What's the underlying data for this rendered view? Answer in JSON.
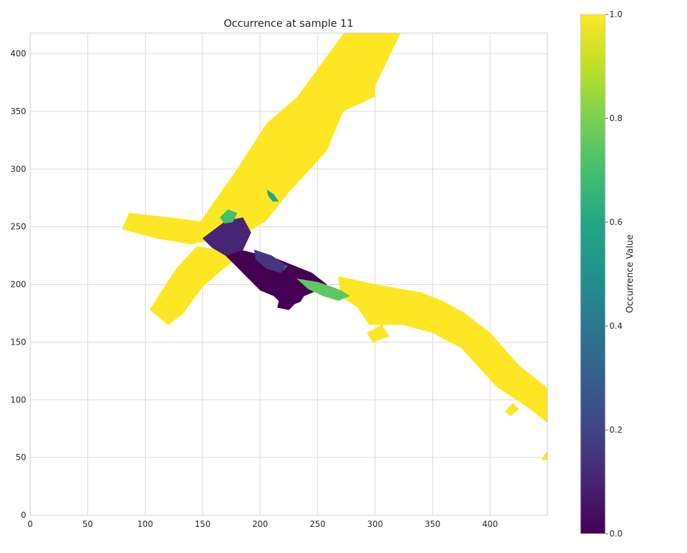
{
  "chart_data": {
    "type": "heatmap",
    "title": "Occurrence at sample 11",
    "xlabel": "",
    "ylabel": "",
    "xlim": [
      0,
      450
    ],
    "ylim": [
      0,
      418
    ],
    "xticks": [
      0,
      50,
      100,
      150,
      200,
      250,
      300,
      350,
      400
    ],
    "yticks": [
      0,
      50,
      100,
      150,
      200,
      250,
      300,
      350,
      400
    ],
    "grid": true,
    "colormap": "viridis",
    "colorbar": {
      "label": "Occurrence Value",
      "range": [
        0.0,
        1.0
      ],
      "ticks": [
        "0.0",
        "0.2",
        "0.4",
        "0.6",
        "0.8",
        "1.0"
      ]
    },
    "regions": [
      {
        "value": 1.0,
        "polygon": [
          [
            147,
            253
          ],
          [
            180,
            300
          ],
          [
            206,
            340
          ],
          [
            232,
            362
          ],
          [
            273,
            418
          ],
          [
            322,
            418
          ],
          [
            300,
            372
          ],
          [
            300,
            363
          ],
          [
            272,
            350
          ],
          [
            258,
            316
          ],
          [
            225,
            280
          ],
          [
            205,
            255
          ],
          [
            180,
            240
          ],
          [
            160,
            235
          ]
        ]
      },
      {
        "value": 1.0,
        "polygon": [
          [
            80,
            248
          ],
          [
            86,
            262
          ],
          [
            130,
            257
          ],
          [
            165,
            252
          ],
          [
            175,
            248
          ],
          [
            174,
            240
          ],
          [
            155,
            238
          ],
          [
            140,
            235
          ],
          [
            110,
            240
          ]
        ]
      },
      {
        "value": 1.0,
        "polygon": [
          [
            104,
            178
          ],
          [
            120,
            165
          ],
          [
            133,
            175
          ],
          [
            150,
            198
          ],
          [
            166,
            212
          ],
          [
            182,
            224
          ],
          [
            165,
            230
          ],
          [
            145,
            233
          ],
          [
            128,
            215
          ],
          [
            118,
            200
          ]
        ]
      },
      {
        "value": 1.0,
        "polygon": [
          [
            268,
            207
          ],
          [
            300,
            200
          ],
          [
            340,
            193
          ],
          [
            360,
            185
          ],
          [
            378,
            175
          ],
          [
            400,
            158
          ],
          [
            425,
            130
          ],
          [
            450,
            110
          ],
          [
            450,
            80
          ],
          [
            435,
            92
          ],
          [
            405,
            112
          ],
          [
            375,
            145
          ],
          [
            350,
            158
          ],
          [
            325,
            165
          ],
          [
            305,
            165
          ],
          [
            295,
            165
          ],
          [
            285,
            180
          ],
          [
            270,
            190
          ]
        ]
      },
      {
        "value": 1.0,
        "polygon": [
          [
            293,
            158
          ],
          [
            306,
            165
          ],
          [
            312,
            155
          ],
          [
            298,
            150
          ]
        ]
      },
      {
        "value": 1.0,
        "polygon": [
          [
            413,
            90
          ],
          [
            420,
            97
          ],
          [
            425,
            92
          ],
          [
            418,
            86
          ]
        ]
      },
      {
        "value": 1.0,
        "polygon": [
          [
            445,
            48
          ],
          [
            450,
            48
          ],
          [
            450,
            55
          ],
          [
            447,
            52
          ]
        ]
      },
      {
        "value": 0.0,
        "polygon": [
          [
            175,
            232
          ],
          [
            215,
            222
          ],
          [
            245,
            210
          ],
          [
            258,
            200
          ],
          [
            250,
            195
          ],
          [
            238,
            190
          ],
          [
            235,
            185
          ],
          [
            222,
            180
          ],
          [
            212,
            190
          ],
          [
            200,
            195
          ],
          [
            190,
            205
          ],
          [
            180,
            215
          ],
          [
            170,
            225
          ]
        ]
      },
      {
        "value": 0.0,
        "polygon": [
          [
            215,
            180
          ],
          [
            225,
            178
          ],
          [
            232,
            185
          ],
          [
            225,
            190
          ],
          [
            217,
            188
          ]
        ]
      },
      {
        "value": 0.1,
        "polygon": [
          [
            150,
            240
          ],
          [
            170,
            255
          ],
          [
            185,
            258
          ],
          [
            192,
            245
          ],
          [
            185,
            230
          ],
          [
            170,
            225
          ],
          [
            158,
            232
          ]
        ]
      },
      {
        "value": 0.35,
        "polygon": [
          [
            210,
            214
          ],
          [
            220,
            212
          ],
          [
            224,
            216
          ],
          [
            218,
            219
          ],
          [
            211,
            218
          ]
        ]
      },
      {
        "value": 0.75,
        "polygon": [
          [
            232,
            205
          ],
          [
            250,
            202
          ],
          [
            262,
            198
          ],
          [
            270,
            195
          ],
          [
            278,
            190
          ],
          [
            268,
            186
          ],
          [
            255,
            190
          ],
          [
            242,
            196
          ]
        ]
      },
      {
        "value": 0.7,
        "polygon": [
          [
            165,
            258
          ],
          [
            172,
            265
          ],
          [
            180,
            262
          ],
          [
            176,
            254
          ],
          [
            169,
            253
          ]
        ]
      },
      {
        "value": 0.15,
        "polygon": [
          [
            195,
            230
          ],
          [
            210,
            225
          ],
          [
            222,
            217
          ],
          [
            218,
            210
          ],
          [
            205,
            214
          ],
          [
            196,
            222
          ]
        ]
      },
      {
        "value": 0.6,
        "polygon": [
          [
            206,
            282
          ],
          [
            212,
            278
          ],
          [
            216,
            272
          ],
          [
            211,
            272
          ],
          [
            207,
            277
          ]
        ]
      }
    ]
  }
}
